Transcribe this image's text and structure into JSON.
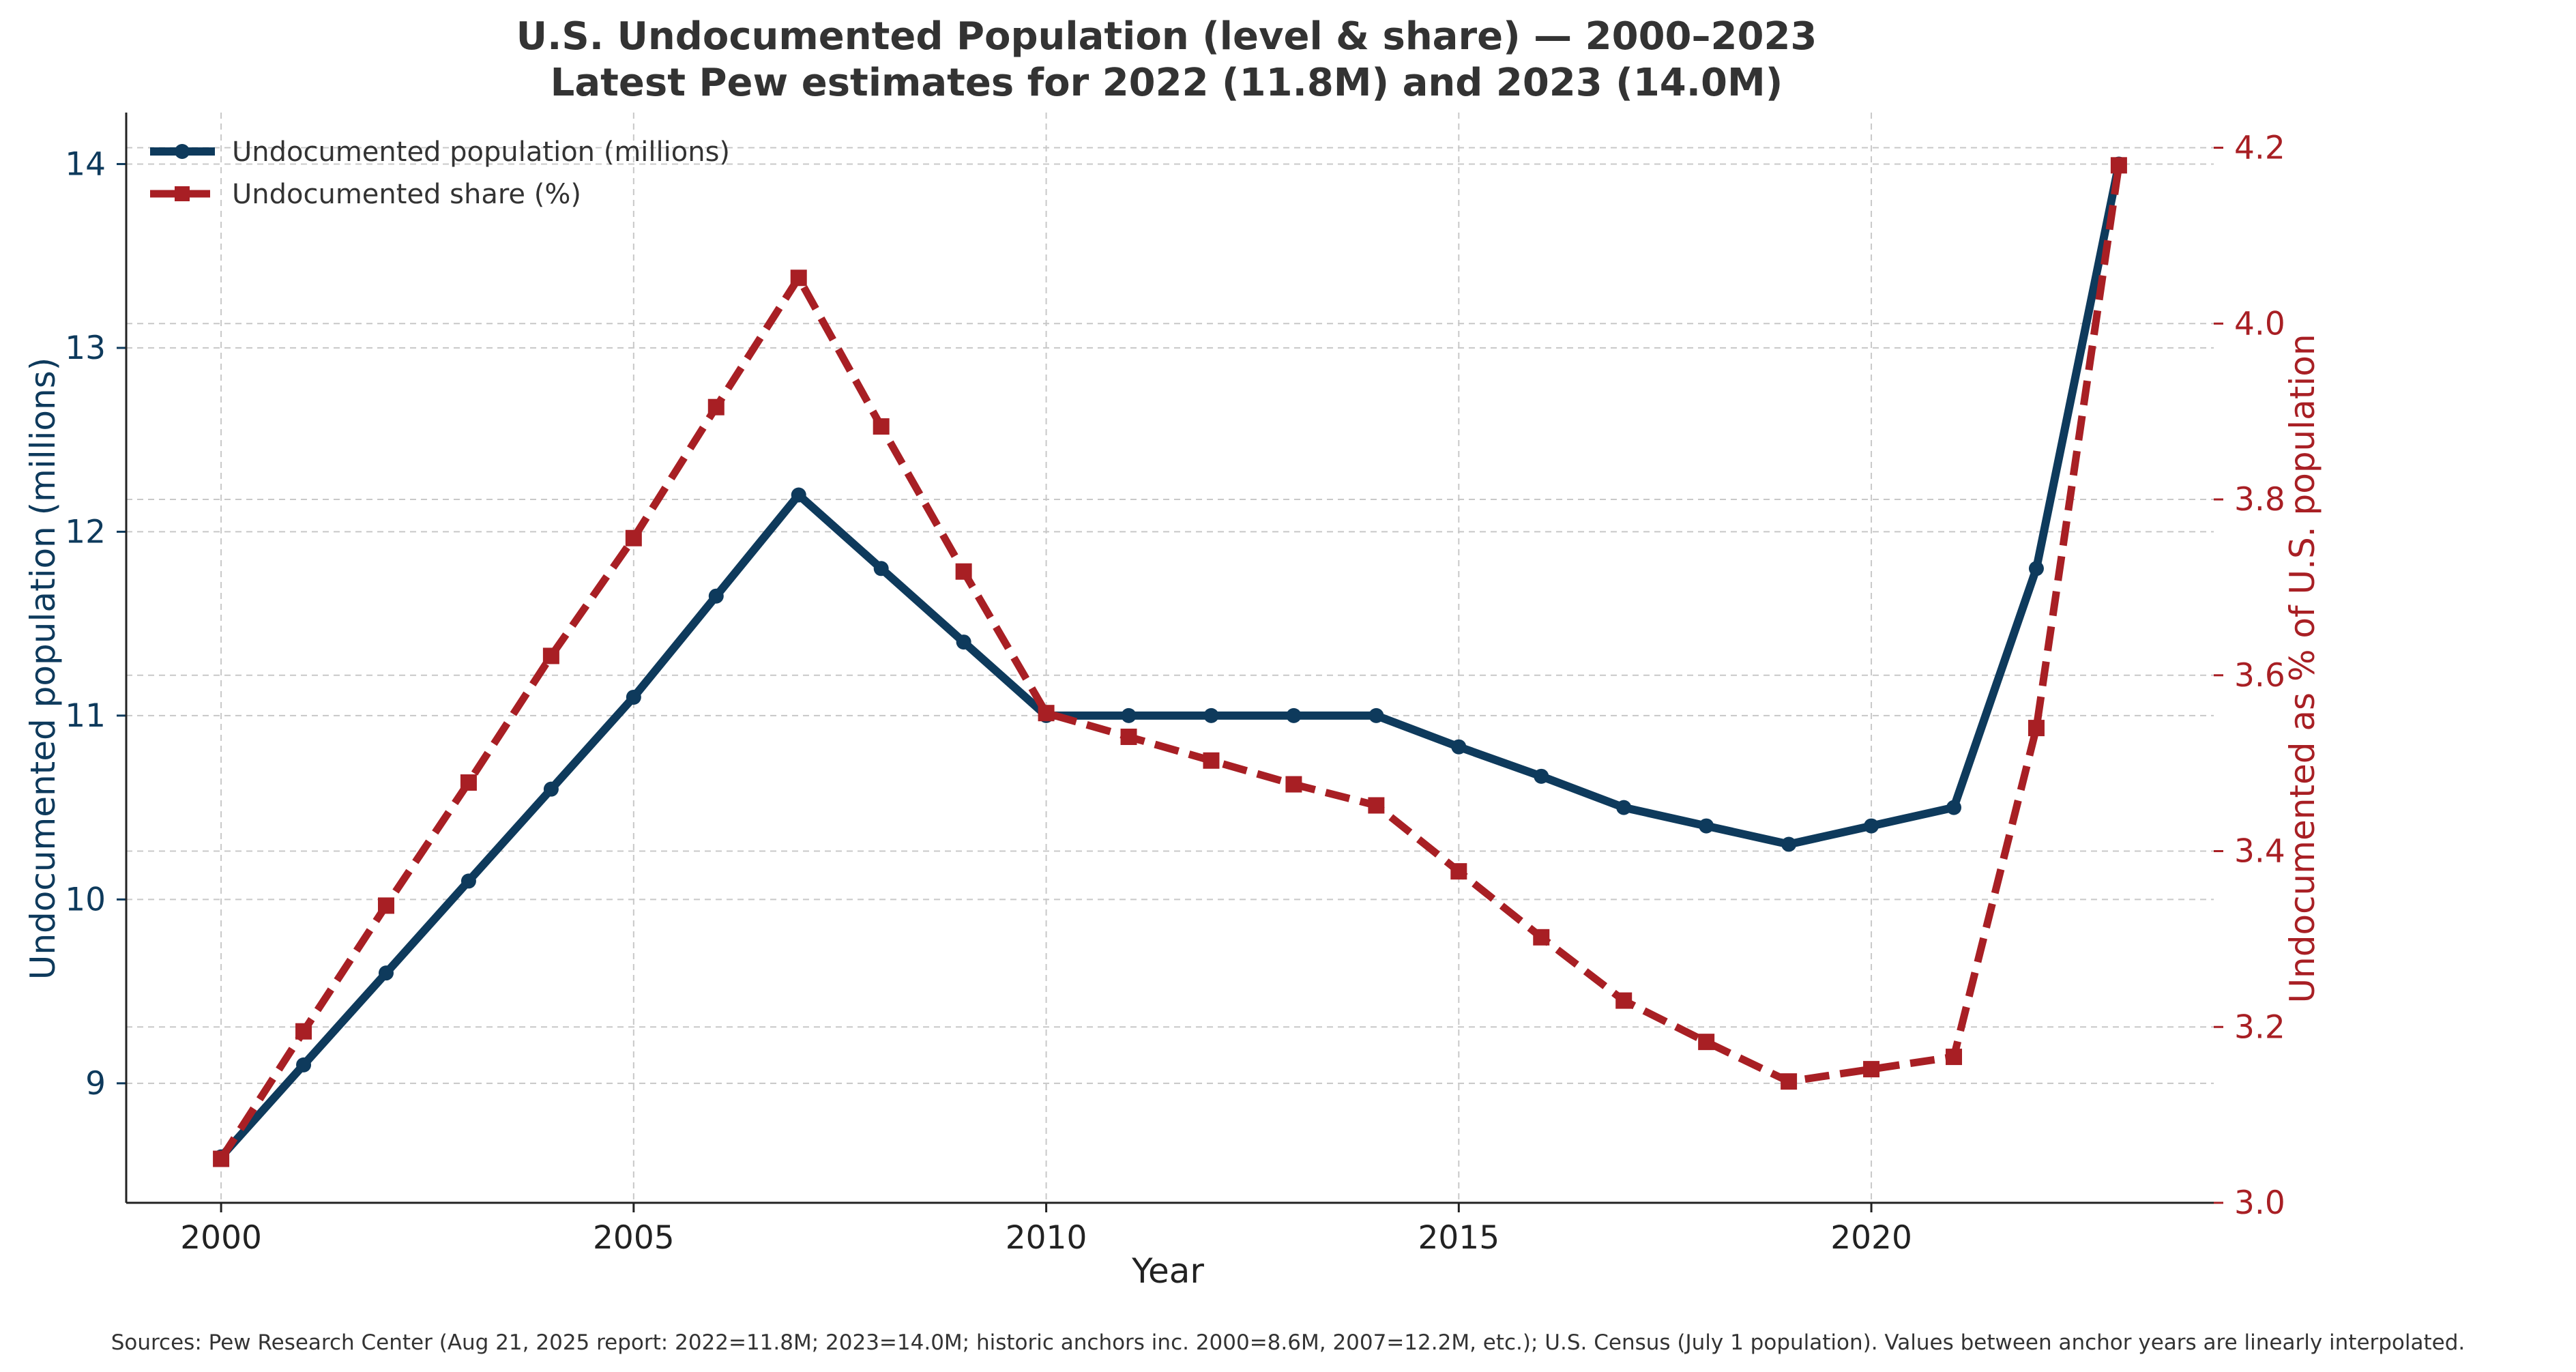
{
  "chart_data": {
    "type": "line",
    "title_line1": "U.S. Undocumented Population (level & share) — 2000–2023",
    "title_line2": "Latest Pew estimates for 2022 (11.8M) and 2023 (14.0M)",
    "xlabel": "Year",
    "ylabel_left": "Undocumented population (millions)",
    "ylabel_right": "Undocumented as % of U.S. population",
    "x": [
      2000,
      2001,
      2002,
      2003,
      2004,
      2005,
      2006,
      2007,
      2008,
      2009,
      2010,
      2011,
      2012,
      2013,
      2014,
      2015,
      2016,
      2017,
      2018,
      2019,
      2020,
      2021,
      2022,
      2023
    ],
    "x_ticks": [
      2000,
      2005,
      2010,
      2015,
      2020
    ],
    "x_tick_labels": [
      "2000",
      "2005",
      "2010",
      "2015",
      "2020"
    ],
    "xlim": [
      1998.85,
      2024.15
    ],
    "ylim_left": [
      8.35,
      14.28
    ],
    "y_ticks_left": [
      9,
      10,
      11,
      12,
      13,
      14
    ],
    "y_tick_labels_left": [
      "9",
      "10",
      "11",
      "12",
      "13",
      "14"
    ],
    "ylim_right": [
      3.0,
      4.24
    ],
    "y_ticks_right": [
      3.0,
      3.2,
      3.4,
      3.6,
      3.8,
      4.0,
      4.2
    ],
    "y_tick_labels_right": [
      "3.0",
      "3.2",
      "3.4",
      "3.6",
      "3.8",
      "4.0",
      "4.2"
    ],
    "grid": true,
    "legend_position": "top-left",
    "series": [
      {
        "name": "Undocumented population (millions)",
        "axis": "left",
        "color": "#0e3a5c",
        "style": "solid",
        "marker": "circle",
        "values": [
          8.6,
          9.1,
          9.6,
          10.1,
          10.6,
          11.1,
          11.65,
          12.2,
          11.8,
          11.4,
          11.0,
          11.0,
          11.0,
          11.0,
          11.0,
          10.83,
          10.67,
          10.5,
          10.4,
          10.3,
          10.4,
          10.5,
          11.8,
          14.0
        ]
      },
      {
        "name": "Undocumented share (%)",
        "axis": "right",
        "color": "#a81f24",
        "style": "dashed",
        "marker": "square",
        "values": [
          3.05,
          3.195,
          3.338,
          3.478,
          3.622,
          3.756,
          3.905,
          4.052,
          3.883,
          3.718,
          3.557,
          3.53,
          3.503,
          3.476,
          3.452,
          3.377,
          3.302,
          3.23,
          3.183,
          3.138,
          3.152,
          3.166,
          3.54,
          4.18
        ]
      }
    ]
  },
  "footer": {
    "sources": "Sources: Pew Research Center (Aug 21, 2025 report: 2022=11.8M; 2023=14.0M; historic anchors inc. 2000=8.6M, 2007=12.2M, etc.); U.S. Census (July 1 population). Values between anchor years are linearly interpolated."
  }
}
